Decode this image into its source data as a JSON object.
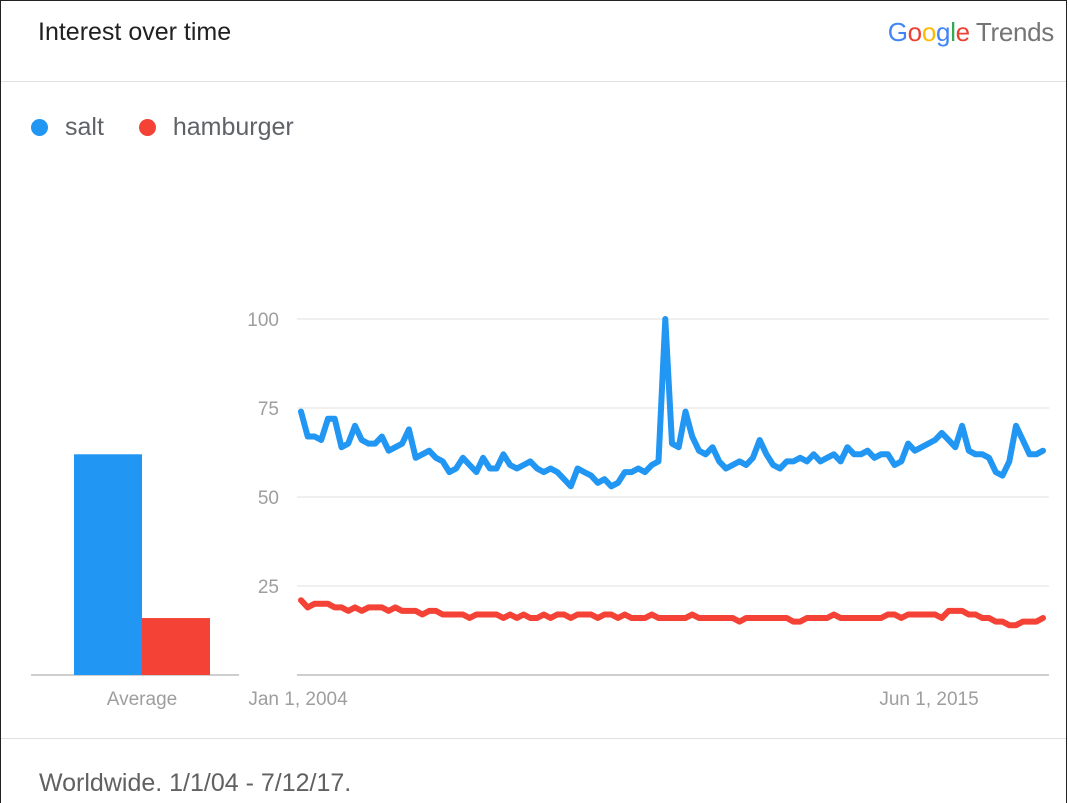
{
  "header": {
    "title": "Interest over time",
    "brand_google": [
      "G",
      "o",
      "o",
      "g",
      "l",
      "e"
    ],
    "brand_trends": "Trends"
  },
  "legend": [
    {
      "name": "salt",
      "color": "#2196f3"
    },
    {
      "name": "hamburger",
      "color": "#f44336"
    }
  ],
  "footer": {
    "text": "Worldwide. 1/1/04 - 7/12/17."
  },
  "chart_data": {
    "type": "line",
    "title": "Interest over time",
    "y_ticks": [
      "25",
      "50",
      "75",
      "100"
    ],
    "ylim": [
      0,
      100
    ],
    "x_ticks": [
      "Jan 1, 2004",
      "Jun 1, 2015"
    ],
    "x_range": [
      "2004-01",
      "2017-07"
    ],
    "grid": true,
    "legend_position": "top-left",
    "average": {
      "label": "Average",
      "values": {
        "salt": 62,
        "hamburger": 16
      }
    },
    "series": [
      {
        "name": "salt",
        "color": "#2196f3",
        "values": [
          74,
          67,
          67,
          66,
          72,
          72,
          64,
          65,
          70,
          66,
          65,
          65,
          67,
          63,
          64,
          65,
          69,
          61,
          62,
          63,
          61,
          60,
          57,
          58,
          61,
          59,
          57,
          61,
          58,
          58,
          62,
          59,
          58,
          59,
          60,
          58,
          57,
          58,
          57,
          55,
          53,
          58,
          57,
          56,
          54,
          55,
          53,
          54,
          57,
          57,
          58,
          57,
          59,
          60,
          100,
          65,
          64,
          74,
          67,
          63,
          62,
          64,
          60,
          58,
          59,
          60,
          59,
          61,
          66,
          62,
          59,
          58,
          60,
          60,
          61,
          60,
          62,
          60,
          61,
          62,
          60,
          64,
          62,
          62,
          63,
          61,
          62,
          62,
          59,
          60,
          65,
          63,
          64,
          65,
          66,
          68,
          66,
          64,
          70,
          63,
          62,
          62,
          61,
          57,
          56,
          60,
          70,
          66,
          62,
          62,
          63
        ]
      },
      {
        "name": "hamburger",
        "color": "#f44336",
        "values": [
          21,
          19,
          20,
          20,
          20,
          19,
          19,
          18,
          19,
          18,
          19,
          19,
          19,
          18,
          19,
          18,
          18,
          18,
          17,
          18,
          18,
          17,
          17,
          17,
          17,
          16,
          17,
          17,
          17,
          17,
          16,
          17,
          16,
          17,
          16,
          16,
          17,
          16,
          17,
          17,
          16,
          17,
          17,
          17,
          16,
          17,
          17,
          16,
          17,
          16,
          16,
          16,
          17,
          16,
          16,
          16,
          16,
          16,
          17,
          16,
          16,
          16,
          16,
          16,
          16,
          15,
          16,
          16,
          16,
          16,
          16,
          16,
          16,
          15,
          15,
          16,
          16,
          16,
          16,
          17,
          16,
          16,
          16,
          16,
          16,
          16,
          16,
          17,
          17,
          16,
          17,
          17,
          17,
          17,
          17,
          16,
          18,
          18,
          18,
          17,
          17,
          16,
          16,
          15,
          15,
          14,
          14,
          15,
          15,
          15,
          16
        ]
      }
    ]
  }
}
